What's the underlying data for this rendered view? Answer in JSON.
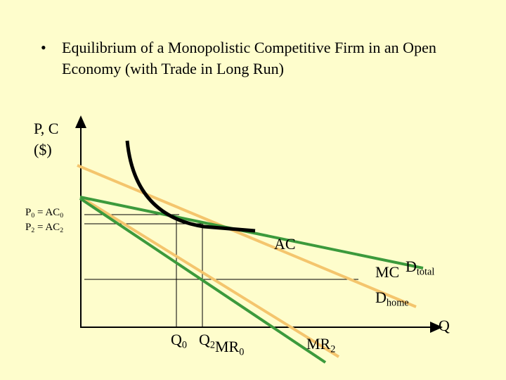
{
  "title": "Equilibrium of a Monopolistic Competitive Firm in an Open Economy (with Trade in Long Run)",
  "labels": [
    {
      "parts": [
        "P, C"
      ]
    },
    {
      "parts": [
        "($)"
      ]
    },
    {
      "parts": [
        "P",
        "0",
        " = AC",
        "0"
      ]
    },
    {
      "parts": [
        "P",
        "2",
        " = AC",
        "2"
      ]
    },
    {
      "parts": [
        "AC"
      ]
    },
    {
      "parts": [
        "MC"
      ]
    },
    {
      "parts": [
        "D",
        "total"
      ]
    },
    {
      "parts": [
        "D",
        "home"
      ]
    },
    {
      "parts": [
        "Q"
      ]
    },
    {
      "parts": [
        "Q",
        "0"
      ]
    },
    {
      "parts": [
        "Q",
        "2"
      ]
    },
    {
      "parts": [
        "MR",
        "0"
      ]
    },
    {
      "parts": [
        "MR",
        "2"
      ]
    }
  ]
}
